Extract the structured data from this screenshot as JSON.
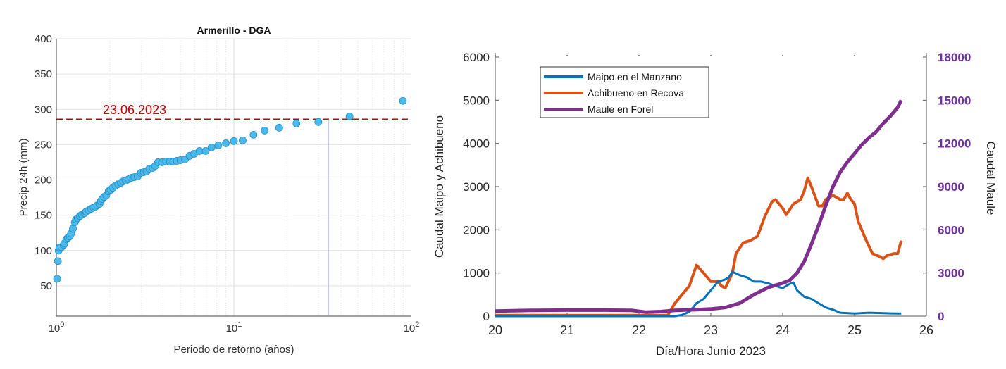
{
  "chart_data": [
    {
      "type": "scatter",
      "title": "Armerillo - DGA",
      "xlabel": "Periodo de retorno (años)",
      "ylabel": "Precip 24h (mm)",
      "xscale": "log",
      "xlim": [
        1,
        100
      ],
      "ylim": [
        7,
        400
      ],
      "xticks": [
        "10^0",
        "10^1",
        "10^2"
      ],
      "yticks": [
        50,
        100,
        150,
        200,
        250,
        300,
        350,
        400
      ],
      "grid": true,
      "marker_color": "#4db8ea",
      "annotation": {
        "text": "23.06.2023",
        "y": 286,
        "color": "#c00000",
        "style": "dashed"
      },
      "vertical_line": {
        "x": 34,
        "color": "#8aa0c8"
      },
      "points": [
        [
          1.01,
          60
        ],
        [
          1.02,
          85
        ],
        [
          1.03,
          100
        ],
        [
          1.04,
          104
        ],
        [
          1.07,
          105
        ],
        [
          1.1,
          108
        ],
        [
          1.11,
          110
        ],
        [
          1.14,
          116
        ],
        [
          1.16,
          118
        ],
        [
          1.19,
          120
        ],
        [
          1.21,
          124
        ],
        [
          1.24,
          131
        ],
        [
          1.27,
          140
        ],
        [
          1.29,
          144
        ],
        [
          1.32,
          146
        ],
        [
          1.36,
          149
        ],
        [
          1.39,
          151
        ],
        [
          1.44,
          153
        ],
        [
          1.47,
          155
        ],
        [
          1.52,
          157
        ],
        [
          1.57,
          159
        ],
        [
          1.62,
          161
        ],
        [
          1.66,
          162
        ],
        [
          1.7,
          164
        ],
        [
          1.75,
          166
        ],
        [
          1.78,
          170
        ],
        [
          1.81,
          173
        ],
        [
          1.86,
          176
        ],
        [
          1.91,
          178
        ],
        [
          1.97,
          184
        ],
        [
          2.02,
          186
        ],
        [
          2.08,
          189
        ],
        [
          2.15,
          192
        ],
        [
          2.23,
          194
        ],
        [
          2.31,
          196
        ],
        [
          2.38,
          198
        ],
        [
          2.46,
          199
        ],
        [
          2.55,
          201
        ],
        [
          2.64,
          203
        ],
        [
          2.75,
          204
        ],
        [
          2.87,
          205
        ],
        [
          2.99,
          210
        ],
        [
          3.11,
          211
        ],
        [
          3.22,
          212
        ],
        [
          3.34,
          216
        ],
        [
          3.49,
          217
        ],
        [
          3.61,
          220
        ],
        [
          3.74,
          225
        ],
        [
          3.93,
          225
        ],
        [
          4.15,
          226
        ],
        [
          4.36,
          226
        ],
        [
          4.56,
          226
        ],
        [
          4.77,
          227
        ],
        [
          5.01,
          228
        ],
        [
          5.3,
          229
        ],
        [
          5.62,
          234
        ],
        [
          5.97,
          237
        ],
        [
          6.4,
          241
        ],
        [
          6.93,
          241
        ],
        [
          7.48,
          246
        ],
        [
          8.17,
          249
        ],
        [
          9.01,
          252
        ],
        [
          10.0,
          255
        ],
        [
          11.2,
          256
        ],
        [
          12.9,
          264
        ],
        [
          14.9,
          270
        ],
        [
          18.0,
          274
        ],
        [
          22.5,
          280
        ],
        [
          29.9,
          282
        ],
        [
          44.8,
          290
        ],
        [
          89.5,
          312
        ]
      ]
    },
    {
      "type": "line",
      "xlabel": "Día/Hora Junio 2023",
      "ylabel": "Caudal Maipo y Achibueno",
      "ylabel_right": "Caudal Maule",
      "xlim": [
        20,
        26
      ],
      "ylim": [
        0,
        6000
      ],
      "ylim_right": [
        0,
        18000
      ],
      "xticks": [
        20,
        21,
        22,
        23,
        24,
        25,
        26
      ],
      "yticks": [
        0,
        1000,
        2000,
        3000,
        4000,
        5000,
        6000
      ],
      "yticks_right": [
        0,
        3000,
        6000,
        9000,
        12000,
        15000,
        18000
      ],
      "legend": "top-left",
      "series": [
        {
          "name": "Maipo en el Manzano",
          "color": "#0072bd",
          "axis": "left",
          "x": [
            20,
            22.5,
            22.6,
            22.7,
            22.8,
            22.9,
            23.0,
            23.1,
            23.2,
            23.25,
            23.3,
            23.4,
            23.5,
            23.6,
            23.7,
            23.8,
            23.9,
            24.0,
            24.1,
            24.15,
            24.2,
            24.3,
            24.4,
            24.5,
            24.6,
            24.7,
            24.8,
            25.0,
            25.2,
            25.4,
            25.6,
            25.65
          ],
          "y": [
            0,
            0,
            30,
            100,
            300,
            400,
            600,
            800,
            850,
            900,
            1030,
            950,
            900,
            800,
            800,
            760,
            700,
            650,
            750,
            780,
            600,
            450,
            400,
            300,
            200,
            150,
            80,
            60,
            80,
            70,
            60,
            60
          ]
        },
        {
          "name": "Achibueno en Recova",
          "color": "#d95319",
          "axis": "left",
          "x": [
            20,
            22.4,
            22.5,
            22.6,
            22.7,
            22.8,
            22.9,
            23.0,
            23.1,
            23.15,
            23.2,
            23.3,
            23.35,
            23.45,
            23.55,
            23.65,
            23.75,
            23.85,
            23.9,
            24.0,
            24.05,
            24.15,
            24.25,
            24.3,
            24.35,
            24.4,
            24.5,
            24.55,
            24.6,
            24.7,
            24.8,
            24.85,
            24.9,
            24.95,
            25.0,
            25.05,
            25.15,
            25.25,
            25.35,
            25.4,
            25.45,
            25.55,
            25.6,
            25.65
          ],
          "y": [
            20,
            20,
            300,
            500,
            700,
            1180,
            1000,
            800,
            800,
            700,
            650,
            1000,
            1450,
            1700,
            1750,
            1850,
            2300,
            2650,
            2700,
            2500,
            2350,
            2600,
            2700,
            2900,
            3200,
            3000,
            2550,
            2550,
            2700,
            2800,
            2700,
            2700,
            2850,
            2700,
            2600,
            2200,
            1800,
            1450,
            1380,
            1330,
            1400,
            1450,
            1450,
            1750
          ]
        },
        {
          "name": "Maule en Forel",
          "color": "#7e2f8e",
          "axis": "right",
          "x": [
            20,
            20.5,
            21,
            21.5,
            21.9,
            22.1,
            22.3,
            22.5,
            22.8,
            23.0,
            23.2,
            23.4,
            23.6,
            23.8,
            24.0,
            24.1,
            24.2,
            24.3,
            24.4,
            24.5,
            24.6,
            24.7,
            24.8,
            24.9,
            25.0,
            25.1,
            25.2,
            25.3,
            25.4,
            25.5,
            25.6,
            25.65
          ],
          "y": [
            350,
            400,
            420,
            420,
            400,
            280,
            320,
            400,
            450,
            500,
            600,
            900,
            1500,
            2000,
            2300,
            2500,
            3000,
            3800,
            5000,
            6300,
            7700,
            9000,
            10000,
            10700,
            11300,
            11900,
            12400,
            12800,
            13400,
            13900,
            14500,
            15000
          ]
        }
      ]
    }
  ]
}
